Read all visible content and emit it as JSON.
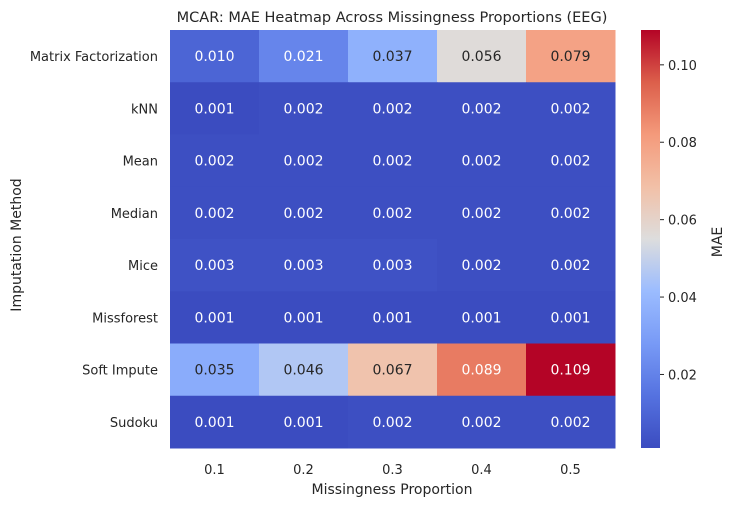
{
  "chart_data": {
    "type": "heatmap",
    "title": "MCAR: MAE Heatmap Across Missingness Proportions (EEG)",
    "xlabel": "Missingness Proportion",
    "ylabel": "Imputation Method",
    "x": [
      "0.1",
      "0.2",
      "0.3",
      "0.4",
      "0.5"
    ],
    "y": [
      "Matrix Factorization",
      "kNN",
      "Mean",
      "Median",
      "Mice",
      "Missforest",
      "Soft Impute",
      "Sudoku"
    ],
    "values": [
      [
        0.01,
        0.021,
        0.037,
        0.056,
        0.079
      ],
      [
        0.001,
        0.002,
        0.002,
        0.002,
        0.002
      ],
      [
        0.002,
        0.002,
        0.002,
        0.002,
        0.002
      ],
      [
        0.002,
        0.002,
        0.002,
        0.002,
        0.002
      ],
      [
        0.003,
        0.003,
        0.003,
        0.002,
        0.002
      ],
      [
        0.001,
        0.001,
        0.001,
        0.001,
        0.001
      ],
      [
        0.035,
        0.046,
        0.067,
        0.089,
        0.109
      ],
      [
        0.001,
        0.001,
        0.002,
        0.002,
        0.002
      ]
    ],
    "cell_labels": [
      [
        "0.010",
        "0.021",
        "0.037",
        "0.056",
        "0.079"
      ],
      [
        "0.001",
        "0.002",
        "0.002",
        "0.002",
        "0.002"
      ],
      [
        "0.002",
        "0.002",
        "0.002",
        "0.002",
        "0.002"
      ],
      [
        "0.002",
        "0.002",
        "0.002",
        "0.002",
        "0.002"
      ],
      [
        "0.003",
        "0.003",
        "0.003",
        "0.002",
        "0.002"
      ],
      [
        "0.001",
        "0.001",
        "0.001",
        "0.001",
        "0.001"
      ],
      [
        "0.035",
        "0.046",
        "0.067",
        "0.089",
        "0.109"
      ],
      [
        "0.001",
        "0.001",
        "0.002",
        "0.002",
        "0.002"
      ]
    ],
    "colormap": "coolwarm",
    "colorbar": {
      "label": "MAE",
      "range": [
        0.001,
        0.109
      ],
      "ticks": [
        0.02,
        0.04,
        0.06,
        0.08,
        0.1
      ],
      "tick_labels": [
        "0.02",
        "0.04",
        "0.06",
        "0.08",
        "0.10"
      ]
    },
    "grid": false,
    "colors": {
      "low": "#3b4cc0",
      "mid": "#dddddd",
      "high": "#b40426",
      "text": "#262626"
    }
  }
}
